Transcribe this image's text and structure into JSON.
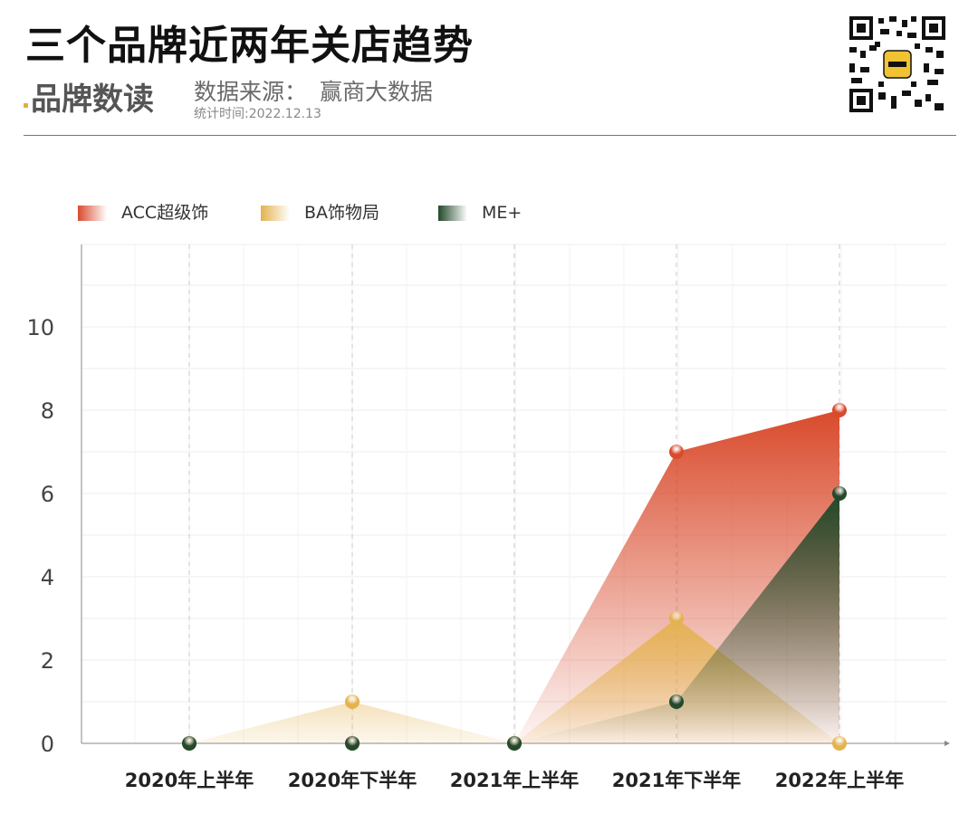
{
  "header": {
    "title": "三个品牌近两年关店趋势",
    "brand": "品牌数读",
    "source_label": "数据来源：",
    "source_value": "赢商大数据",
    "stat_time": "统计时间:2022.12.13",
    "qr_icon": "qr-code-icon"
  },
  "colors": {
    "acc": "#d94a2c",
    "ba": "#e4b24e",
    "me": "#23492a",
    "grid": "#ececec",
    "axis": "#888888"
  },
  "chart_data": {
    "type": "area",
    "categories": [
      "2020年上半年",
      "2020年下半年",
      "2021年上半年",
      "2021年下半年",
      "2022年上半年"
    ],
    "series": [
      {
        "name": "ACC超级饰",
        "values": [
          0,
          0,
          0,
          7,
          8
        ]
      },
      {
        "name": "BA饰物局",
        "values": [
          0,
          1,
          0,
          3,
          0
        ]
      },
      {
        "name": "ME+",
        "values": [
          0,
          0,
          0,
          1,
          6
        ]
      }
    ],
    "y_ticks": [
      "0",
      "2",
      "4",
      "6",
      "8",
      "10"
    ],
    "ylim": [
      0,
      12
    ],
    "grid": true,
    "legend_position": "top-left"
  }
}
